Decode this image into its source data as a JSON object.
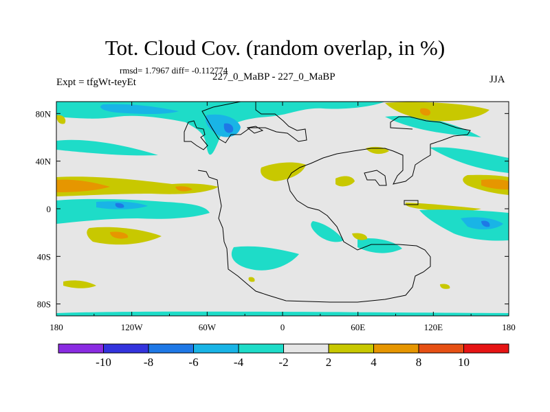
{
  "title": "Tot. Cloud Cov. (random overlap, in %)",
  "stats": "rmsd= 1.7967  diff= -0.112774",
  "experiment": "Expt = tfgWt-teyEt",
  "subtitle": "227_0_MaBP - 227_0_MaBP",
  "season": "JJA",
  "map": {
    "projection": "cylindrical equidistant",
    "lon_range": [
      -180,
      180
    ],
    "lat_range": [
      -90,
      90
    ],
    "x_ticks": [
      {
        "lon": -180,
        "label": "180"
      },
      {
        "lon": -120,
        "label": "120W"
      },
      {
        "lon": -60,
        "label": "60W"
      },
      {
        "lon": 0,
        "label": "0"
      },
      {
        "lon": 60,
        "label": "60E"
      },
      {
        "lon": 120,
        "label": "120E"
      },
      {
        "lon": 180,
        "label": "180"
      }
    ],
    "y_ticks": [
      {
        "lat": 80,
        "label": "80N"
      },
      {
        "lat": 40,
        "label": "40N"
      },
      {
        "lat": 0,
        "label": "0"
      },
      {
        "lat": -40,
        "label": "40S"
      },
      {
        "lat": -80,
        "label": "80S"
      }
    ]
  },
  "colorbar": {
    "colors": [
      "#8a2be2",
      "#3333dd",
      "#1e78e6",
      "#19b4e6",
      "#1edcc8",
      "#e6e6e6",
      "#c8c800",
      "#e69600",
      "#e65014",
      "#e61414"
    ],
    "levels": [
      -10,
      -8,
      -6,
      -4,
      -2,
      2,
      4,
      8,
      10
    ],
    "labels": [
      "-10",
      "-8",
      "-6",
      "-4",
      "-2",
      "2",
      "4",
      "8",
      "10"
    ]
  },
  "colors": {
    "land_bg": "#e6e6e6",
    "neg_light": "#1edcc8",
    "neg_mid": "#19b4e6",
    "neg_strong": "#1e78e6",
    "neg_deep": "#3333dd",
    "pos_light": "#c8c800",
    "pos_mid": "#e69600"
  }
}
